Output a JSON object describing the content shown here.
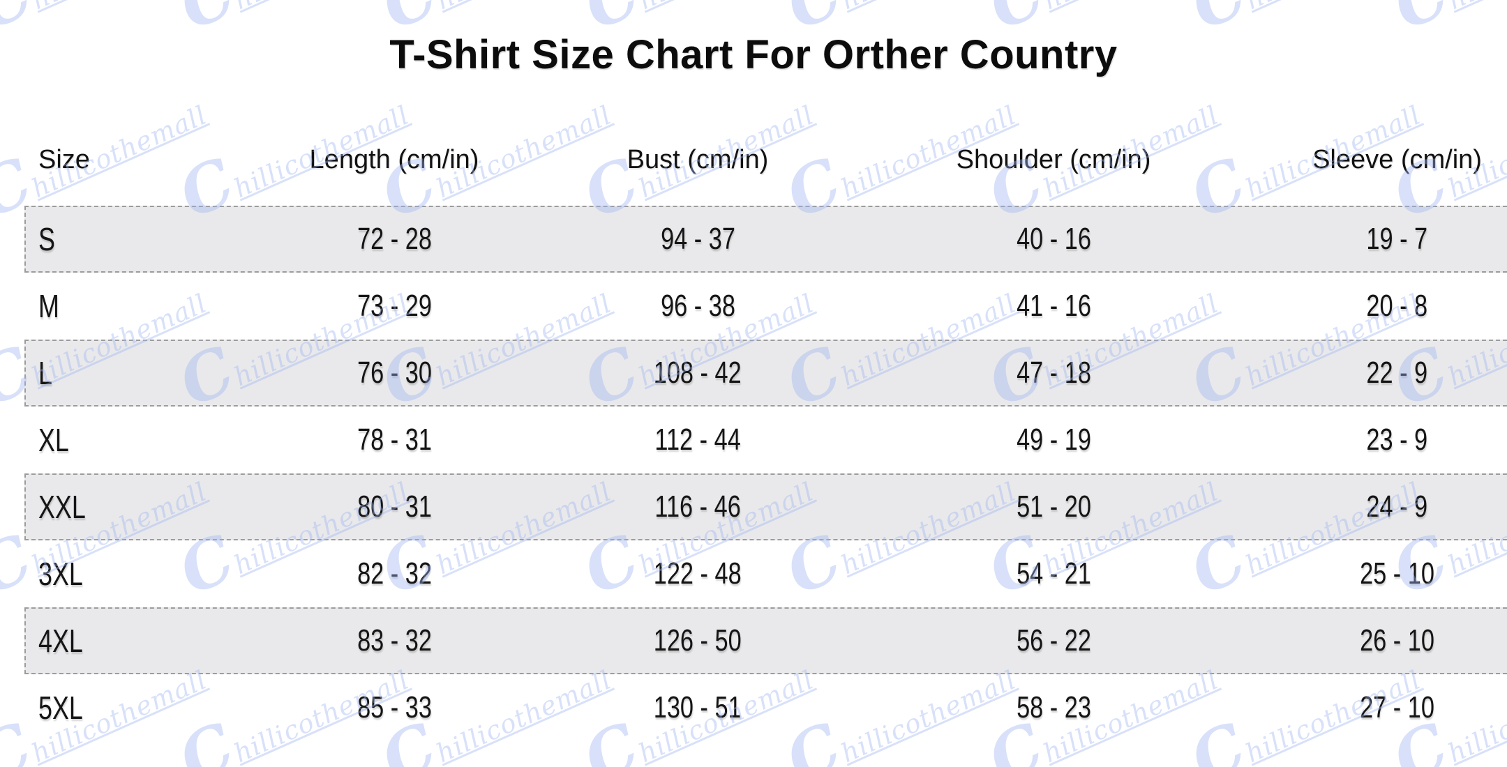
{
  "chart_data": {
    "type": "table",
    "title": "T-Shirt Size Chart For Orther Country",
    "columns": [
      "Size",
      "Length (cm/in)",
      "Bust (cm/in)",
      "Shoulder (cm/in)",
      "Sleeve (cm/in)"
    ],
    "rows": [
      [
        "S",
        "72 - 28",
        "94 - 37",
        "40 - 16",
        "19 - 7"
      ],
      [
        "M",
        "73 - 29",
        "96 - 38",
        "41 - 16",
        "20 - 8"
      ],
      [
        "L",
        "76 - 30",
        "108 - 42",
        "47 - 18",
        "22 - 9"
      ],
      [
        "XL",
        "78 - 31",
        "112 - 44",
        "49 - 19",
        "23 - 9"
      ],
      [
        "XXL",
        "80 - 31",
        "116 - 46",
        "51 - 20",
        "24 - 9"
      ],
      [
        "3XL",
        "82 - 32",
        "122 - 48",
        "54 - 21",
        "25 - 10"
      ],
      [
        "4XL",
        "83 - 32",
        "126 - 50",
        "56 - 22",
        "26 - 10"
      ],
      [
        "5XL",
        "85 - 33",
        "130 - 51",
        "58 - 23",
        "27 - 10"
      ]
    ]
  },
  "watermark": {
    "text": "Chillicothemall",
    "initial": "C",
    "rest": "hillicothemall",
    "color": "#b9c7f0"
  },
  "colors": {
    "background": "#ffffff",
    "stripe_bg": "#e9e9eb",
    "stripe_border": "#9c9c9c",
    "text": "#141414"
  }
}
